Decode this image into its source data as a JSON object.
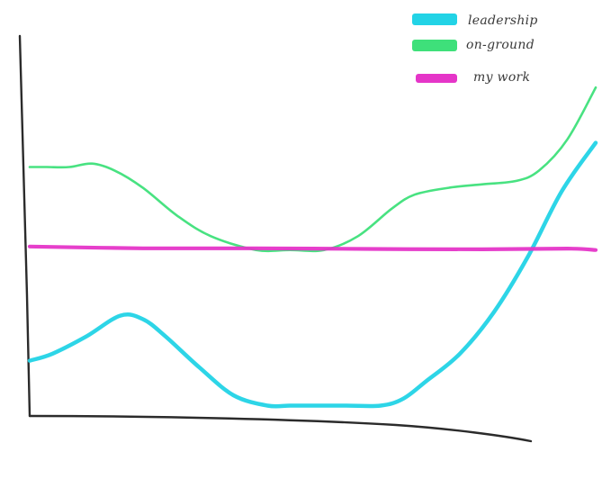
{
  "chart_data": {
    "type": "line",
    "title": "",
    "xlabel": "",
    "ylabel": "",
    "grid": false,
    "axis_ticks": false,
    "legend_position": "top-right",
    "xlim": [
      0,
      100
    ],
    "ylim": [
      0,
      100
    ],
    "series": [
      {
        "name": "leadership",
        "color": "#22d3e6",
        "x": [
          0,
          4,
          10,
          16,
          20,
          24,
          30,
          36,
          42,
          46,
          50,
          56,
          62,
          66,
          70,
          76,
          82,
          88,
          94,
          100
        ],
        "values": [
          16,
          18,
          23,
          29,
          28,
          23,
          14,
          6,
          3,
          3,
          3,
          3,
          3,
          5,
          10,
          18,
          30,
          46,
          65,
          79
        ]
      },
      {
        "name": "on-ground",
        "color": "#3ee07a",
        "x": [
          0,
          3,
          7,
          11,
          15,
          20,
          26,
          32,
          40,
          46,
          52,
          58,
          64,
          68,
          74,
          80,
          86,
          90,
          95,
          100
        ],
        "values": [
          72,
          72,
          72,
          73,
          71,
          66,
          58,
          52,
          48,
          48,
          48,
          52,
          60,
          64,
          66,
          67,
          68,
          71,
          80,
          95
        ]
      },
      {
        "name": "my work",
        "color": "#e535c8",
        "x": [
          0,
          20,
          40,
          60,
          80,
          95,
          100
        ],
        "values": [
          49,
          48.5,
          48.5,
          48.3,
          48.2,
          48.4,
          48
        ]
      }
    ]
  }
}
